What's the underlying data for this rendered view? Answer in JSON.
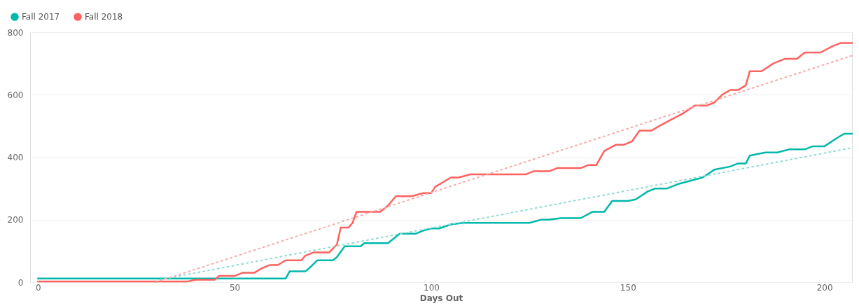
{
  "chart_data": {
    "type": "line",
    "xlabel": "Days Out",
    "xlim": [
      -2,
      207
    ],
    "xticks": [
      0,
      50,
      100,
      150,
      200
    ],
    "ylim": [
      0,
      800
    ],
    "yticks": [
      0,
      200,
      400,
      600,
      800
    ],
    "grid": "y",
    "legend": "top left",
    "marker": "none",
    "series": [
      {
        "name": "Fall 2017",
        "color": "#01b8aa",
        "line_style": "solid",
        "x": [
          0,
          63,
          64,
          68,
          69,
          71,
          75,
          76,
          78,
          82,
          83,
          89,
          90,
          92,
          96,
          98,
          100,
          102,
          105,
          108,
          125,
          128,
          130,
          133,
          138,
          141,
          144,
          146,
          150,
          152,
          155,
          157,
          160,
          163,
          166,
          169,
          172,
          176,
          178,
          180,
          181,
          185,
          188,
          191,
          195,
          197,
          200,
          203,
          205,
          207
        ],
        "values": [
          12,
          12,
          35,
          35,
          45,
          70,
          70,
          80,
          115,
          115,
          125,
          125,
          135,
          155,
          155,
          165,
          172,
          172,
          185,
          190,
          190,
          200,
          200,
          205,
          205,
          225,
          225,
          260,
          260,
          265,
          290,
          300,
          300,
          315,
          325,
          335,
          360,
          370,
          380,
          380,
          405,
          415,
          415,
          425,
          425,
          435,
          435,
          460,
          475,
          475
        ]
      },
      {
        "name": "Fall 2018",
        "color": "#fd625e",
        "line_style": "solid",
        "x": [
          0,
          38,
          40,
          45,
          46,
          50,
          52,
          55,
          57,
          59,
          61,
          63,
          67,
          68,
          70,
          74,
          76,
          77,
          79,
          80,
          81,
          87,
          89,
          91,
          95,
          98,
          100,
          101,
          103,
          105,
          107,
          110,
          124,
          126,
          130,
          132,
          138,
          140,
          142,
          144,
          147,
          149,
          151,
          153,
          156,
          158,
          161,
          164,
          167,
          170,
          172,
          174,
          176,
          178,
          180,
          181,
          184,
          187,
          190,
          193,
          195,
          199,
          202,
          204,
          207
        ],
        "values": [
          2,
          2,
          8,
          8,
          20,
          20,
          30,
          30,
          45,
          55,
          55,
          70,
          70,
          85,
          95,
          95,
          120,
          175,
          175,
          190,
          225,
          225,
          245,
          275,
          275,
          285,
          285,
          305,
          320,
          335,
          335,
          345,
          345,
          355,
          355,
          365,
          365,
          375,
          375,
          420,
          440,
          440,
          450,
          485,
          485,
          500,
          520,
          540,
          565,
          565,
          575,
          600,
          615,
          615,
          630,
          675,
          675,
          700,
          715,
          715,
          735,
          735,
          755,
          765,
          765
        ]
      },
      {
        "color": "#8fdcd5",
        "line_style": "dotted",
        "x": [
          31,
          207
        ],
        "values": [
          8,
          430
        ]
      },
      {
        "color": "#f7a9a7",
        "line_style": "dotted",
        "x": [
          30,
          207
        ],
        "values": [
          0,
          725
        ]
      }
    ]
  }
}
